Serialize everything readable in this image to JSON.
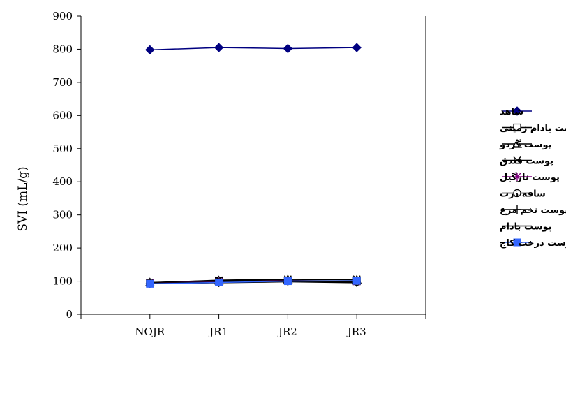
{
  "chart_data": {
    "type": "line",
    "categories": [
      "NOJR",
      "JR1",
      "JR2",
      "JR3"
    ],
    "ylabel": "SVI (mL/g)",
    "xlabel": "",
    "ylim": [
      0,
      900
    ],
    "yticks": [
      0,
      100,
      200,
      300,
      400,
      500,
      600,
      700,
      800,
      900
    ],
    "grid": false,
    "legend_position": "right",
    "series": [
      {
        "name": "شاهد",
        "values": [
          798,
          805,
          802,
          805
        ],
        "color": "#000080",
        "marker": "diamond-filled"
      },
      {
        "name": "پوست بادام زمینی",
        "values": [
          95,
          100,
          102,
          100
        ],
        "color": "#000000",
        "marker": "square-open"
      },
      {
        "name": "پوست گردو",
        "values": [
          96,
          102,
          105,
          104
        ],
        "color": "#000000",
        "marker": "triangle-open"
      },
      {
        "name": "پوست فندق",
        "values": [
          95,
          103,
          106,
          106
        ],
        "color": "#000000",
        "marker": "x"
      },
      {
        "name": "پوست نارگیل",
        "values": [
          94,
          98,
          101,
          99
        ],
        "color": "#800080",
        "marker": "asterisk"
      },
      {
        "name": "ساقه ذرت",
        "values": [
          93,
          97,
          100,
          98
        ],
        "color": "#000000",
        "marker": "circle-open"
      },
      {
        "name": "پوست تخم مرغ",
        "values": [
          92,
          95,
          98,
          95
        ],
        "color": "#000000",
        "marker": "plus"
      },
      {
        "name": "پوست بادام",
        "values": [
          94,
          97,
          100,
          97
        ],
        "color": "#000000",
        "marker": "dash"
      },
      {
        "name": "پوست درخت کاج",
        "values": [
          92,
          96,
          100,
          101
        ],
        "color": "#3366FF",
        "marker": "square-filled"
      }
    ]
  }
}
